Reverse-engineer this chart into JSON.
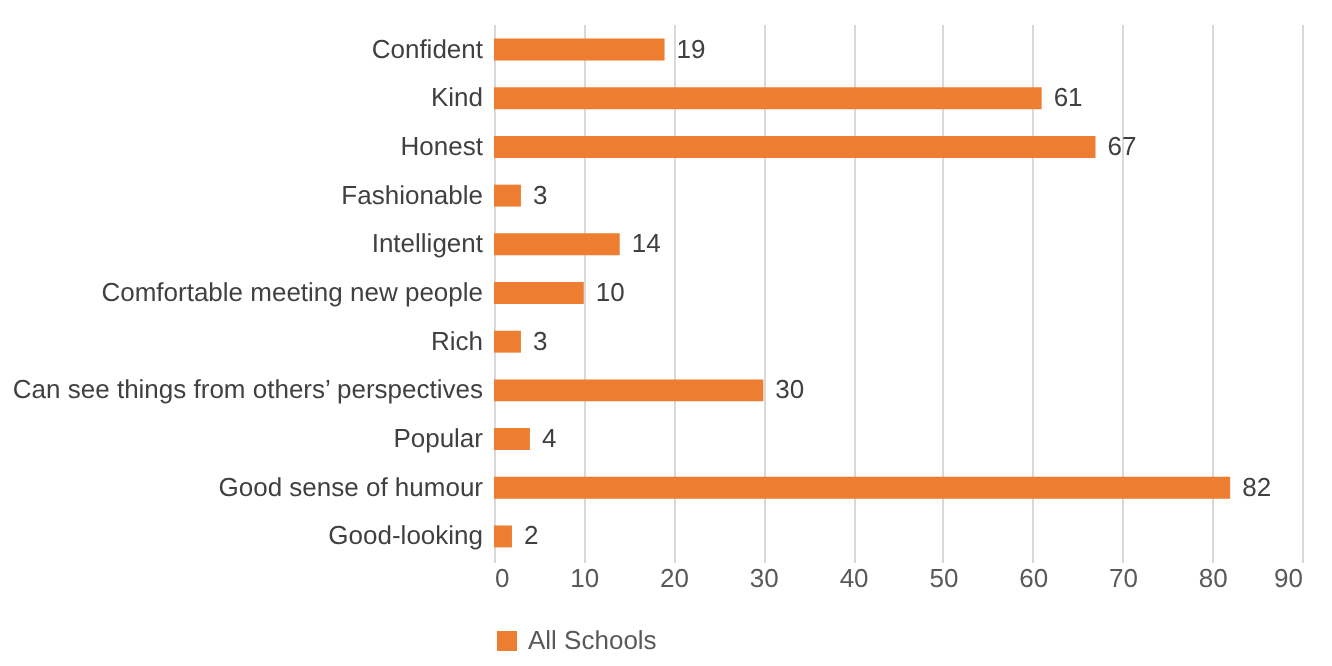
{
  "chart_data": {
    "type": "bar",
    "orientation": "horizontal",
    "categories": [
      "Confident",
      "Kind",
      "Honest",
      "Fashionable",
      "Intelligent",
      "Comfortable meeting new people",
      "Rich",
      "Can see things from others’ perspectives",
      "Popular",
      "Good sense of humour",
      "Good-looking"
    ],
    "series": [
      {
        "name": "All Schools",
        "color": "#ed7d31",
        "values": [
          19,
          61,
          67,
          3,
          14,
          10,
          3,
          30,
          4,
          82,
          2
        ]
      }
    ],
    "xlim": [
      0,
      90
    ],
    "xticks": [
      0,
      10,
      20,
      30,
      40,
      50,
      60,
      70,
      80,
      90
    ],
    "grid": "x",
    "legend": "bottom",
    "data_labels": true
  }
}
